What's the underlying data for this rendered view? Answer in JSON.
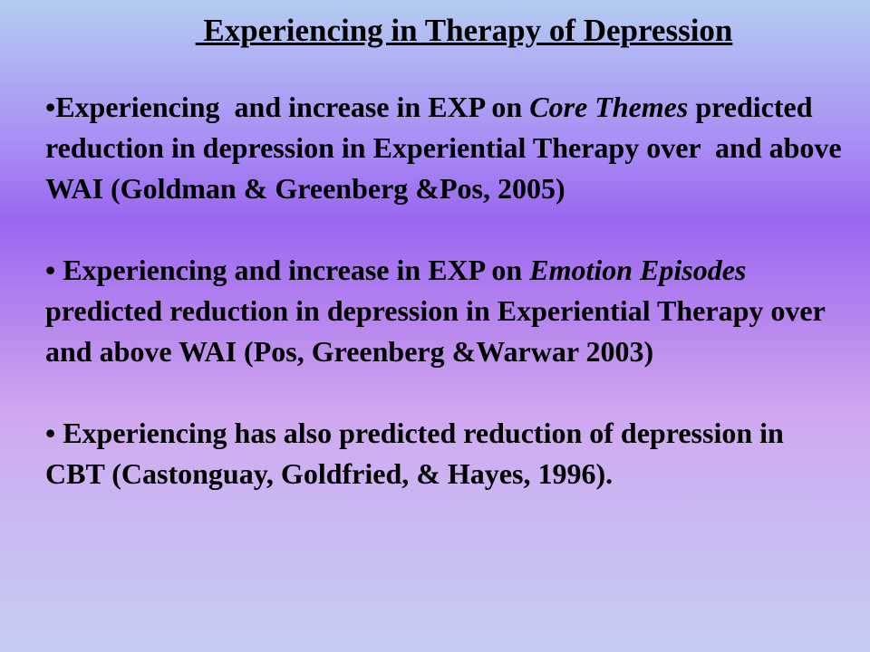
{
  "title": " Experiencing in Therapy of Depression",
  "bullets": [
    {
      "parts": [
        "•Experiencing  and increase in EXP on ",
        "Core Themes",
        " predicted reduction in depression in Experiential Therapy over  and above WAI (Goldman & Greenberg &Pos, 2005)"
      ]
    },
    {
      "parts": [
        "• Experiencing and increase in EXP on ",
        "Emotion Episodes",
        " predicted reduction in depression in Experiential Therapy over  and above WAI (Pos, Greenberg &Warwar 2003)"
      ]
    },
    {
      "parts": [
        "• Experiencing has also predicted reduction of depression in CBT (Castonguay, Goldfried, & Hayes, 1996)."
      ]
    }
  ]
}
